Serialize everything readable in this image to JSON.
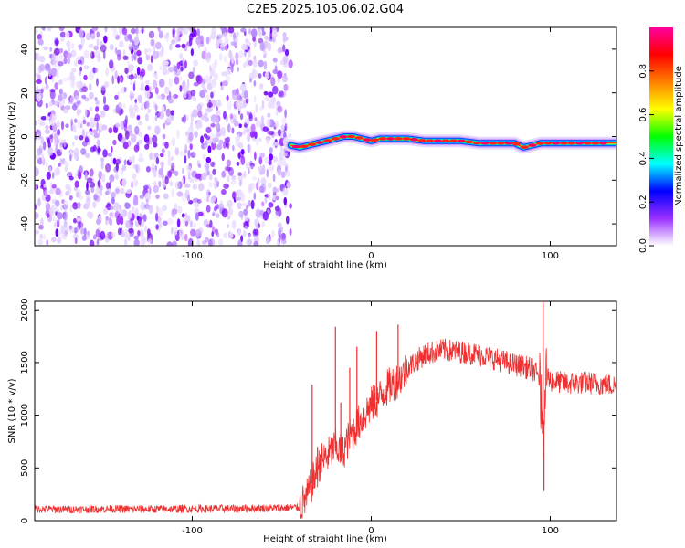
{
  "figure": {
    "title": "C2E5.2025.105.06.02.G04"
  },
  "chart_data": [
    {
      "type": "heatmap",
      "title": "C2E5.2025.105.06.02.G04",
      "xlabel": "Height of straight line (km)",
      "ylabel": "Frequency (Hz)",
      "xlim": [
        -188,
        137
      ],
      "ylim": [
        -50,
        50
      ],
      "x_ticks": [
        -100,
        0,
        100
      ],
      "y_ticks": [
        -40,
        -20,
        0,
        20,
        40
      ],
      "colorbar": {
        "label": "Normalized spectral amplitude",
        "range": [
          0,
          1
        ],
        "ticks": [
          "0.0",
          "0.2",
          "0.4",
          "0.6",
          "0.8"
        ],
        "colormap": [
          "#ffffff",
          "#9b30ff",
          "#0000ff",
          "#00ffff",
          "#00ff00",
          "#ffff00",
          "#ff8000",
          "#ff0000",
          "#ff00a0"
        ]
      },
      "noise_region": {
        "x_range": [
          -188,
          -45
        ],
        "freq_range": [
          -50,
          50
        ],
        "amplitude": "low 0.0-0.2"
      },
      "signal_track": {
        "x": [
          -45,
          -40,
          -35,
          -30,
          -25,
          -20,
          -15,
          -10,
          -5,
          0,
          5,
          10,
          20,
          30,
          40,
          50,
          60,
          70,
          80,
          85,
          90,
          95,
          100,
          110,
          120,
          137
        ],
        "freq": [
          -4,
          -5,
          -4,
          -3,
          -2,
          -1,
          0,
          0,
          -1,
          -2,
          -1,
          -1,
          -1,
          -2,
          -2,
          -2,
          -3,
          -3,
          -3,
          -5,
          -4,
          -3,
          -3,
          -3,
          -3,
          -3
        ]
      }
    },
    {
      "type": "line",
      "xlabel": "Height of straight line (km)",
      "ylabel": "SNR (10 * v/v)",
      "xlim": [
        -188,
        137
      ],
      "ylim": [
        0,
        2080
      ],
      "x_ticks": [
        -100,
        0,
        100
      ],
      "y_ticks": [
        0,
        500,
        1000,
        1500,
        2000
      ],
      "series": [
        {
          "color": "#f03030",
          "x": [
            -188,
            -170,
            -150,
            -130,
            -110,
            -90,
            -70,
            -50,
            -40,
            -36,
            -32,
            -28,
            -24,
            -20,
            -16,
            -12,
            -8,
            -4,
            0,
            4,
            8,
            12,
            16,
            20,
            30,
            40,
            50,
            60,
            70,
            80,
            90,
            94,
            96,
            98,
            100,
            110,
            120,
            137
          ],
          "values": [
            110,
            105,
            110,
            108,
            110,
            112,
            115,
            120,
            125,
            220,
            400,
            560,
            620,
            700,
            640,
            800,
            900,
            1000,
            1100,
            1150,
            1250,
            1300,
            1350,
            1450,
            1580,
            1620,
            1600,
            1580,
            1530,
            1480,
            1440,
            1350,
            800,
            1400,
            1330,
            1300,
            1310,
            1280
          ]
        }
      ],
      "spikes": [
        {
          "x": -33,
          "value": 1290
        },
        {
          "x": -30,
          "value": 700
        },
        {
          "x": -20,
          "value": 1840
        },
        {
          "x": -17,
          "value": 1120
        },
        {
          "x": -12,
          "value": 1450
        },
        {
          "x": -8,
          "value": 1650
        },
        {
          "x": 3,
          "value": 1800
        },
        {
          "x": 15,
          "value": 1860
        },
        {
          "x": 96,
          "value": 2080
        },
        {
          "x": 96.5,
          "value": 280
        }
      ]
    }
  ]
}
